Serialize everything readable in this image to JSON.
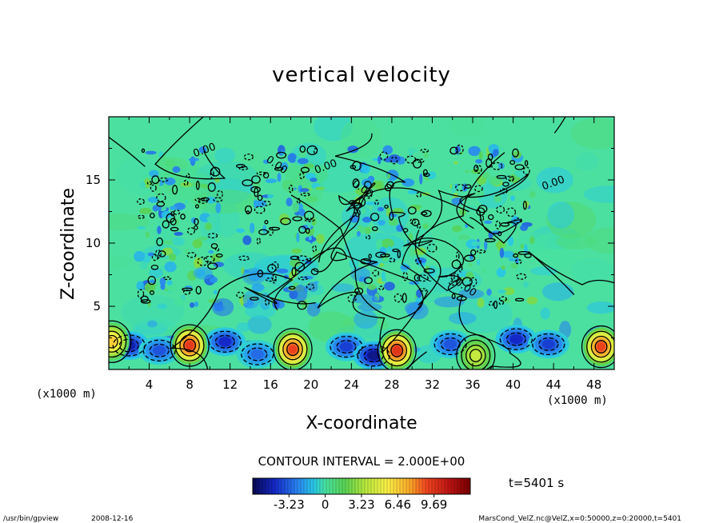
{
  "chart_data": {
    "type": "heatmap",
    "title": "vertical velocity",
    "xlabel": "X-coordinate",
    "ylabel": "Z-coordinate",
    "x_unit": "(x1000 m)",
    "z_unit": "(x1000 m)",
    "xlim": [
      0,
      50
    ],
    "ylim": [
      0,
      20
    ],
    "x_ticks": [
      "4",
      "8",
      "12",
      "16",
      "20",
      "24",
      "28",
      "32",
      "36",
      "40",
      "44",
      "48"
    ],
    "y_ticks": [
      "5",
      "10",
      "15"
    ],
    "contour_label": "0.00",
    "contour_interval_text": "CONTOUR INTERVAL = 2.000E+00",
    "colorbar_ticks": [
      "-3.23",
      "0",
      "3.23",
      "6.46",
      "9.69"
    ],
    "colorbar_range": [
      -6.46,
      12.92
    ],
    "time_text": "t=5401 s",
    "convective_columns_x": [
      7,
      17,
      28,
      38
    ],
    "updraft_cores": [
      {
        "x": 0.3,
        "z": 2.2,
        "w": 6.5
      },
      {
        "x": 8,
        "z": 1.9,
        "w": 9.5
      },
      {
        "x": 18.2,
        "z": 1.6,
        "w": 9.2
      },
      {
        "x": 28.5,
        "z": 1.5,
        "w": 9.69
      },
      {
        "x": 36.3,
        "z": 1.1,
        "w": 4.0
      },
      {
        "x": 48.7,
        "z": 1.8,
        "w": 9.2
      }
    ],
    "downdraft_cores": [
      {
        "x": 2,
        "z": 1.9,
        "w": -5.0
      },
      {
        "x": 5,
        "z": 1.5,
        "w": -3.5
      },
      {
        "x": 11.5,
        "z": 2.2,
        "w": -4.5
      },
      {
        "x": 14.7,
        "z": 1.2,
        "w": -3.0
      },
      {
        "x": 23.5,
        "z": 1.8,
        "w": -4.0
      },
      {
        "x": 26.2,
        "z": 1.1,
        "w": -5.5
      },
      {
        "x": 33.8,
        "z": 2.0,
        "w": -3.5
      },
      {
        "x": 40.3,
        "z": 2.4,
        "w": -4.5
      },
      {
        "x": 43.5,
        "z": 2.0,
        "w": -4.0
      }
    ]
  },
  "footer": {
    "program": "/usr/bin/gpview",
    "date": "2008-12-16",
    "source": "MarsCond_VelZ.nc@VelZ,x=0:50000,z=0:20000,t=5401"
  },
  "colors": {
    "background_green": "#4ce0a0",
    "frame": "#000000"
  }
}
